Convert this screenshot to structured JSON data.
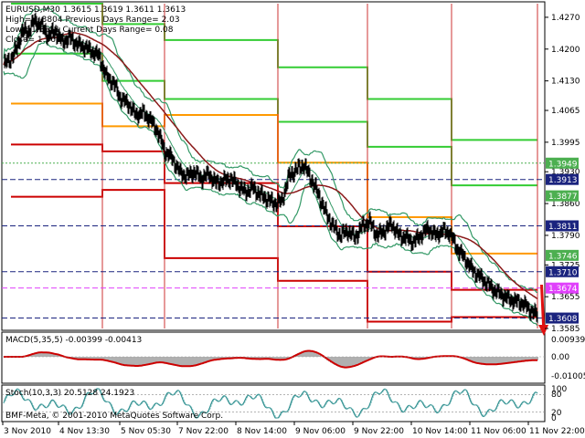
{
  "header": {
    "line1": "EURUSD,M30  1.3615 1.3619 1.3611 1.3613",
    "line2": "High= 1.3804     Previous Days Range= 2.03",
    "line3": "Low= 1.3611      Current Days Range= 0.08",
    "line4": "Close= 1.3613"
  },
  "price_axis": {
    "ticks": [
      "1.4270",
      "1.4200",
      "1.4130",
      "1.4065",
      "1.3995",
      "1.3930",
      "1.3860",
      "1.3790",
      "1.3725",
      "1.3655",
      "1.3585"
    ]
  },
  "level_labels": [
    {
      "text": "1.3949",
      "bg": "#4caf50",
      "fg": "#ffffff"
    },
    {
      "text": "1.3913",
      "bg": "#1a237e",
      "fg": "#ffffff"
    },
    {
      "text": "1.3877",
      "bg": "#4caf50",
      "fg": "#ffffff"
    },
    {
      "text": "1.3811",
      "bg": "#1a237e",
      "fg": "#ffffff"
    },
    {
      "text": "1.3746",
      "bg": "#4caf50",
      "fg": "#ffffff"
    },
    {
      "text": "1.3710",
      "bg": "#1a237e",
      "fg": "#ffffff"
    },
    {
      "text": "1.3674",
      "bg": "#e040fb",
      "fg": "#ffffff"
    },
    {
      "text": "1.3608",
      "bg": "#1a237e",
      "fg": "#ffffff"
    }
  ],
  "macd": {
    "label": "MACD(5,35,5) -0.00399 -0.00413",
    "ticks": [
      "0.00939",
      "0.00",
      "-0.01005"
    ]
  },
  "stoch": {
    "label": "Stoch(10,3,3) 20.5128 24.1923",
    "ticks": [
      "100",
      "80",
      "20",
      "0"
    ]
  },
  "watermark": "BMF-Meta, © 2001-2010 MetaQuotes Software Corp.",
  "time_axis": {
    "ticks": [
      "3 Nov 2010",
      "4 Nov 13:30",
      "5 Nov 05:30",
      "7 Nov 22:00",
      "8 Nov 14:00",
      "9 Nov 06:00",
      "9 Nov 22:00",
      "10 Nov 14:00",
      "11 Nov 06:00",
      "11 Nov 22:00"
    ]
  },
  "colors": {
    "green_levels": "#33cc33",
    "orange_levels": "#ff9900",
    "red_levels": "#cc0000",
    "bollinger": "#339966",
    "ma_slow": "#8b1a1a",
    "ma_fast": "#2a8a2a",
    "macd_hist": "#b0b0b0",
    "macd_signal": "#cc0000",
    "stoch_main": "#2f8f8f",
    "level_blue": "#1a237e",
    "level_magenta": "#e040fb"
  },
  "chart_data": {
    "type": "candlestick",
    "symbol": "EURUSD",
    "timeframe": "M30",
    "ylim": [
      1.3585,
      1.43
    ],
    "close_path": [
      [
        0,
        1.4165
      ],
      [
        8,
        1.418
      ],
      [
        14,
        1.42
      ],
      [
        20,
        1.424
      ],
      [
        26,
        1.4235
      ],
      [
        32,
        1.426
      ],
      [
        40,
        1.4255
      ],
      [
        48,
        1.423
      ],
      [
        56,
        1.424
      ],
      [
        64,
        1.4215
      ],
      [
        72,
        1.4225
      ],
      [
        80,
        1.421
      ],
      [
        88,
        1.4205
      ],
      [
        96,
        1.4195
      ],
      [
        104,
        1.4185
      ],
      [
        112,
        1.414
      ],
      [
        120,
        1.4125
      ],
      [
        128,
        1.409
      ],
      [
        136,
        1.408
      ],
      [
        144,
        1.4055
      ],
      [
        152,
        1.406
      ],
      [
        160,
        1.4045
      ],
      [
        168,
        1.402
      ],
      [
        176,
        1.3975
      ],
      [
        184,
        1.396
      ],
      [
        192,
        1.393
      ],
      [
        200,
        1.392
      ],
      [
        208,
        1.393
      ],
      [
        216,
        1.3915
      ],
      [
        224,
        1.3925
      ],
      [
        232,
        1.3905
      ],
      [
        240,
        1.391
      ],
      [
        248,
        1.3915
      ],
      [
        256,
        1.39
      ],
      [
        264,
        1.3885
      ],
      [
        272,
        1.3895
      ],
      [
        280,
        1.388
      ],
      [
        288,
        1.387
      ],
      [
        296,
        1.386
      ],
      [
        304,
        1.3865
      ],
      [
        312,
        1.392
      ],
      [
        320,
        1.3935
      ],
      [
        328,
        1.3945
      ],
      [
        336,
        1.3915
      ],
      [
        344,
        1.388
      ],
      [
        352,
        1.384
      ],
      [
        360,
        1.381
      ],
      [
        368,
        1.379
      ],
      [
        376,
        1.38
      ],
      [
        384,
        1.3785
      ],
      [
        392,
        1.381
      ],
      [
        400,
        1.382
      ],
      [
        408,
        1.379
      ],
      [
        416,
        1.38
      ],
      [
        424,
        1.3815
      ],
      [
        432,
        1.379
      ],
      [
        440,
        1.3785
      ],
      [
        448,
        1.3775
      ],
      [
        456,
        1.379
      ],
      [
        464,
        1.3805
      ],
      [
        472,
        1.379
      ],
      [
        480,
        1.38
      ],
      [
        488,
        1.3795
      ],
      [
        496,
        1.376
      ],
      [
        504,
        1.374
      ],
      [
        512,
        1.3715
      ],
      [
        520,
        1.37
      ],
      [
        528,
        1.3685
      ],
      [
        536,
        1.367
      ],
      [
        544,
        1.366
      ],
      [
        552,
        1.365
      ],
      [
        560,
        1.3645
      ],
      [
        568,
        1.364
      ],
      [
        576,
        1.3625
      ],
      [
        584,
        1.3613
      ]
    ]
  }
}
